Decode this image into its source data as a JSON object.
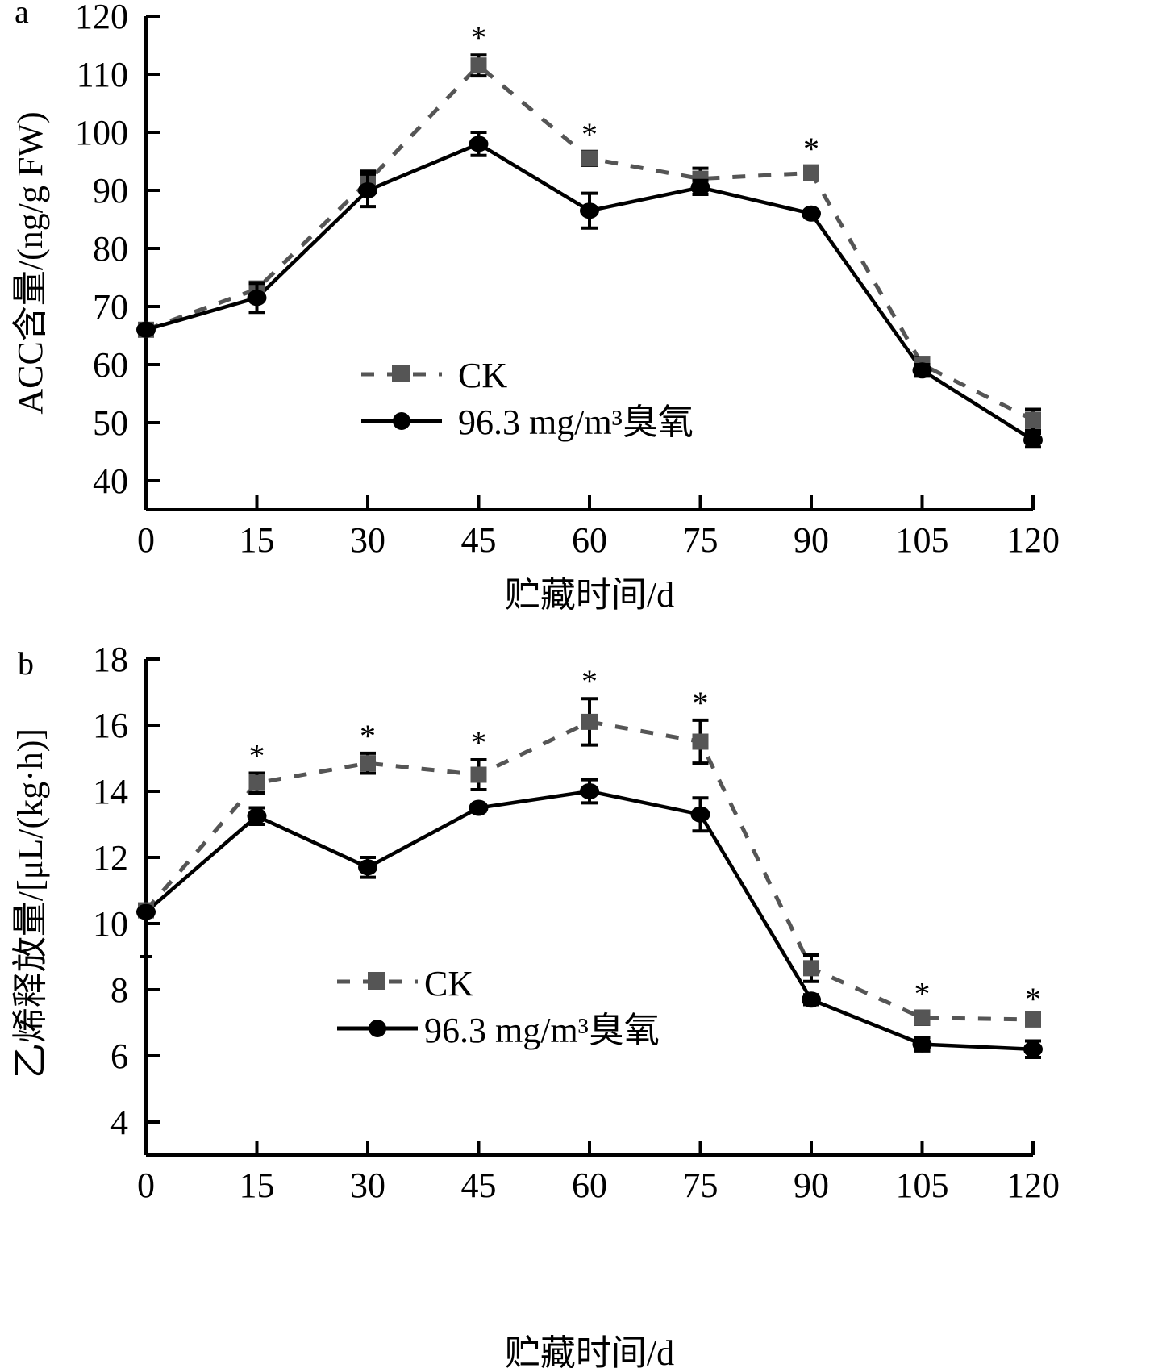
{
  "chart_data": [
    {
      "type": "line",
      "panel_label": "a",
      "title": "",
      "xlabel": "贮藏时间/d",
      "ylabel": "ACC含量/(ng/g FW)",
      "x": [
        0,
        15,
        30,
        45,
        60,
        75,
        90,
        105,
        120
      ],
      "x_ticks": [
        "0",
        "15",
        "30",
        "45",
        "60",
        "75",
        "90",
        "105",
        "120"
      ],
      "y_ticks": [
        "40",
        "50",
        "60",
        "70",
        "80",
        "90",
        "100",
        "110",
        "120"
      ],
      "xlim": [
        0,
        120
      ],
      "ylim": [
        35,
        120
      ],
      "grid": false,
      "legend_position": "center-left",
      "series": [
        {
          "name": "CK",
          "style": "dashed",
          "marker": "square",
          "color": "#555555",
          "values": [
            66,
            73,
            91.5,
            111.5,
            95.5,
            92,
            93,
            60,
            50.5
          ],
          "errors": [
            0.8,
            1.2,
            1.8,
            1.8,
            1.2,
            1.8,
            1.2,
            1.2,
            1.8
          ]
        },
        {
          "name": "96.3 mg/m³臭氧",
          "style": "solid",
          "marker": "circle",
          "color": "#000000",
          "values": [
            66,
            71.5,
            90,
            98,
            86.5,
            90.5,
            86,
            59,
            47
          ],
          "errors": [
            0.5,
            2.5,
            2.8,
            2.0,
            3.0,
            1.2,
            0.5,
            1.0,
            1.2
          ]
        }
      ],
      "significance": [
        45,
        60,
        90
      ],
      "significance_mark": "*"
    },
    {
      "type": "line",
      "panel_label": "b",
      "title": "",
      "xlabel": "贮藏时间/d",
      "ylabel": "乙烯释放量/[μL/(kg·h)]",
      "x": [
        0,
        15,
        30,
        45,
        60,
        75,
        90,
        105,
        120
      ],
      "x_ticks": [
        "0",
        "15",
        "30",
        "45",
        "60",
        "75",
        "90",
        "105",
        "120"
      ],
      "y_ticks": [
        "4",
        "6",
        "8",
        "10",
        "12",
        "14",
        "16",
        "18"
      ],
      "xlim": [
        0,
        120
      ],
      "ylim": [
        3,
        18
      ],
      "grid": false,
      "legend_position": "center-left",
      "series": [
        {
          "name": "CK",
          "style": "dashed",
          "marker": "square",
          "color": "#555555",
          "values": [
            10.4,
            14.25,
            14.85,
            14.5,
            16.1,
            15.5,
            8.65,
            7.15,
            7.1
          ],
          "errors": [
            0.1,
            0.3,
            0.3,
            0.45,
            0.7,
            0.65,
            0.4,
            0.2,
            0.1
          ]
        },
        {
          "name": "96.3 mg/m³臭氧",
          "style": "solid",
          "marker": "circle",
          "color": "#000000",
          "values": [
            10.35,
            13.25,
            11.7,
            13.5,
            14.0,
            13.3,
            7.7,
            6.35,
            6.2
          ],
          "errors": [
            0.1,
            0.25,
            0.3,
            0.1,
            0.35,
            0.5,
            0.15,
            0.2,
            0.25
          ]
        }
      ],
      "significance": [
        15,
        30,
        45,
        60,
        75,
        105,
        120
      ],
      "significance_mark": "*"
    }
  ]
}
